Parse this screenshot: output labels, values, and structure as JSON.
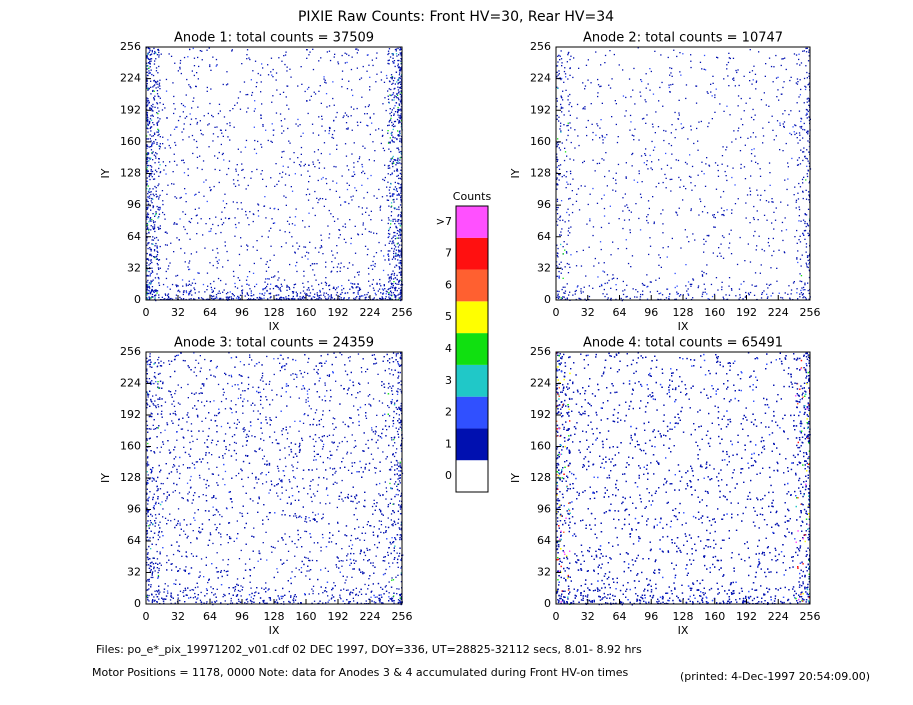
{
  "title": "PIXIE Raw Counts:  Front HV=30, Rear HV=34",
  "chart_data": [
    {
      "type": "heatmap",
      "title": "Anode 1: total counts = 37509",
      "x_label": "IX",
      "y_label": "IY",
      "xlim": [
        0,
        256
      ],
      "ylim": [
        0,
        256
      ],
      "xticks": [
        0,
        32,
        64,
        96,
        128,
        160,
        192,
        224,
        256
      ],
      "yticks": [
        0,
        32,
        64,
        96,
        128,
        160,
        192,
        224,
        256
      ]
    },
    {
      "type": "heatmap",
      "title": "Anode 2: total counts = 10747",
      "x_label": "IX",
      "y_label": "IY",
      "xlim": [
        0,
        256
      ],
      "ylim": [
        0,
        256
      ],
      "xticks": [
        0,
        32,
        64,
        96,
        128,
        160,
        192,
        224,
        256
      ],
      "yticks": [
        0,
        32,
        64,
        96,
        128,
        160,
        192,
        224,
        256
      ]
    },
    {
      "type": "heatmap",
      "title": "Anode 3: total counts = 24359",
      "x_label": "IX",
      "y_label": "IY",
      "xlim": [
        0,
        256
      ],
      "ylim": [
        0,
        256
      ],
      "xticks": [
        0,
        32,
        64,
        96,
        128,
        160,
        192,
        224,
        256
      ],
      "yticks": [
        0,
        32,
        64,
        96,
        128,
        160,
        192,
        224,
        256
      ]
    },
    {
      "type": "heatmap",
      "title": "Anode 4: total counts = 65491",
      "x_label": "IX",
      "y_label": "IY",
      "xlim": [
        0,
        256
      ],
      "ylim": [
        0,
        256
      ],
      "xticks": [
        0,
        32,
        64,
        96,
        128,
        160,
        192,
        224,
        256
      ],
      "yticks": [
        0,
        32,
        64,
        96,
        128,
        160,
        192,
        224,
        256
      ]
    }
  ],
  "colorbar": {
    "title": "Counts",
    "levels": [
      {
        "label": "0",
        "color": "#ffffff"
      },
      {
        "label": "1",
        "color": "#0010b0"
      },
      {
        "label": "2",
        "color": "#3050ff"
      },
      {
        "label": "3",
        "color": "#20c8c8"
      },
      {
        "label": "4",
        "color": "#10e010"
      },
      {
        "label": "5",
        "color": "#ffff00"
      },
      {
        "label": "6",
        "color": "#ff6030"
      },
      {
        "label": "7",
        "color": "#ff1010"
      },
      {
        "label": ">7",
        "color": "#ff50ff"
      }
    ]
  },
  "footer": {
    "files": "Files: po_e*_pix_19971202_v01.cdf    02 DEC 1997, DOY=336, UT=28825-32112 secs,  8.01- 8.92 hrs",
    "motor": "Motor Positions = 1178, 0000   Note: data for Anodes 3 & 4 accumulated during Front HV-on times",
    "printed": "(printed:  4-Dec-1997 20:54:09.00)"
  }
}
